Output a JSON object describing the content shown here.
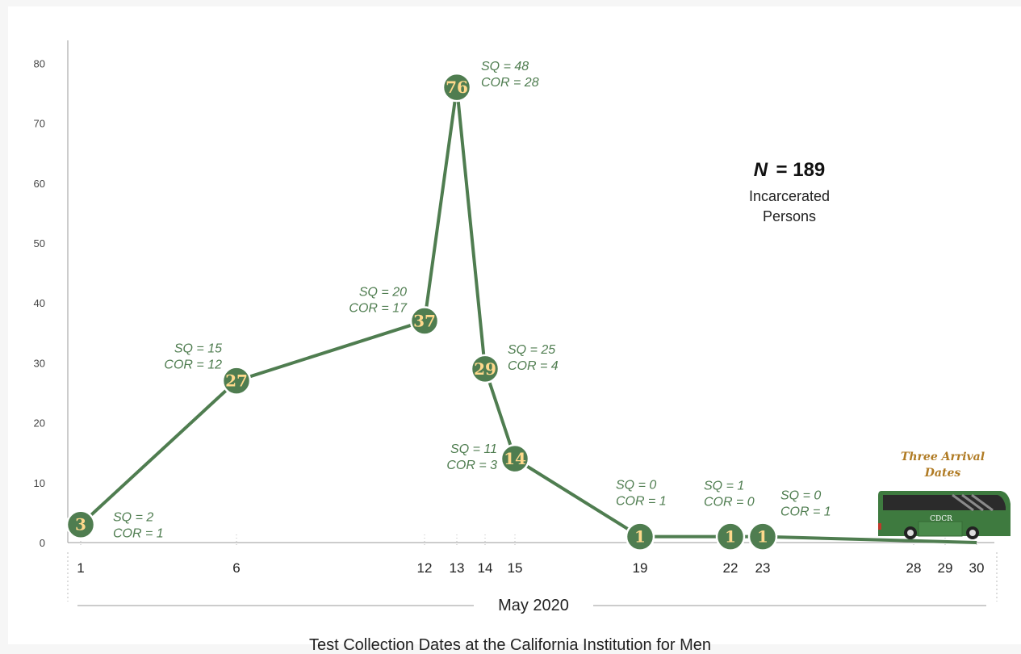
{
  "chart_data": {
    "type": "line",
    "title": "Test Collection Dates at the California Institution for Men",
    "xlabel": "May 2020",
    "ylabel": "",
    "ylim": [
      0,
      80
    ],
    "yticks": [
      0,
      10,
      20,
      30,
      40,
      50,
      60,
      70,
      80
    ],
    "xticks": [
      1,
      6,
      12,
      13,
      14,
      15,
      19,
      22,
      23,
      28,
      29,
      30
    ],
    "xlim": [
      1,
      30
    ],
    "grid": false,
    "series": [
      {
        "name": "",
        "color": "#4f7d50",
        "points": [
          {
            "x": 1,
            "y": 3,
            "label": "3",
            "sq": "SQ = 2",
            "cor": "COR = 1"
          },
          {
            "x": 6,
            "y": 27,
            "label": "27",
            "sq": "SQ = 15",
            "cor": "COR = 12"
          },
          {
            "x": 12,
            "y": 37,
            "label": "37",
            "sq": "SQ = 20",
            "cor": "COR = 17"
          },
          {
            "x": 13,
            "y": 76,
            "label": "76",
            "sq": "SQ = 48",
            "cor": "COR = 28"
          },
          {
            "x": 14,
            "y": 29,
            "label": "29",
            "sq": "SQ = 25",
            "cor": "COR = 4"
          },
          {
            "x": 15,
            "y": 14,
            "label": "14",
            "sq": "SQ = 11",
            "cor": "COR = 3"
          },
          {
            "x": 19,
            "y": 1,
            "label": "1",
            "sq": "SQ = 0",
            "cor": "COR = 1"
          },
          {
            "x": 22,
            "y": 1,
            "label": "1",
            "sq": "SQ = 1",
            "cor": "COR = 0"
          },
          {
            "x": 23,
            "y": 1,
            "label": "1",
            "sq": "SQ = 0",
            "cor": "COR = 1"
          }
        ],
        "tail": [
          {
            "x": 30,
            "y": 0
          }
        ]
      }
    ],
    "annotation": {
      "n_symbol": "N",
      "n_text": "= 189",
      "line1": "Incarcerated",
      "line2": "Persons"
    },
    "arrival": {
      "line1": "Three Arrival",
      "line2": "Dates",
      "bus_text": "CDCR"
    }
  }
}
